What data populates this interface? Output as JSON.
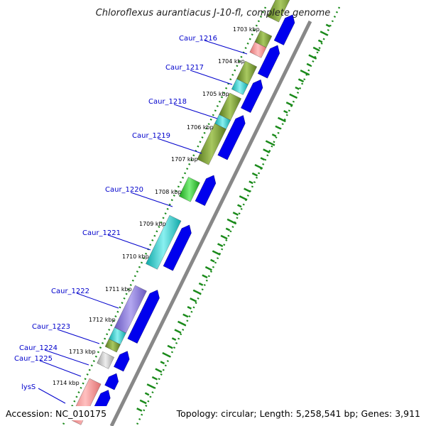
{
  "header": {
    "title": "Chloroflexus aurantiacus J-10-fl, complete genome"
  },
  "footer": {
    "accession": "Accession: NC_010175",
    "topology": "Topology: circular; Length: 5,258,541 bp; Genes: 3,911"
  },
  "ticks": [
    "1703 kbp",
    "1704 kbp",
    "1705 kbp",
    "1706 kbp",
    "1707 kbp",
    "1708 kbp",
    "1709 kbp",
    "1710 kbp",
    "1711 kbp",
    "1712 kbp",
    "1713 kbp",
    "1714 kbp"
  ],
  "genes": [
    {
      "name": "Caur_1216",
      "color": "#7fa33a"
    },
    {
      "name": "Caur_1217",
      "color": "#7fa33a"
    },
    {
      "name": "Caur_1218",
      "color": "#7fa33a"
    },
    {
      "name": "Caur_1219",
      "color": "#7fa33a"
    },
    {
      "name": "Caur_1220",
      "color": "#3ed33e"
    },
    {
      "name": "Caur_1221",
      "color": "#2ad0d0"
    },
    {
      "name": "Caur_1222",
      "color": "#8a7ad8"
    },
    {
      "name": "Caur_1223",
      "color": "#2ad0d0"
    },
    {
      "name": "Caur_1224",
      "color": "#c8c8c8"
    },
    {
      "name": "Caur_1225",
      "color": "#c8c8c8"
    },
    {
      "name": "lysS",
      "color": "#f28f8f"
    }
  ],
  "colors": {
    "cds_forward": "#0000ee",
    "gc_skew": "#1a8a1a",
    "backbone": "#888888"
  }
}
